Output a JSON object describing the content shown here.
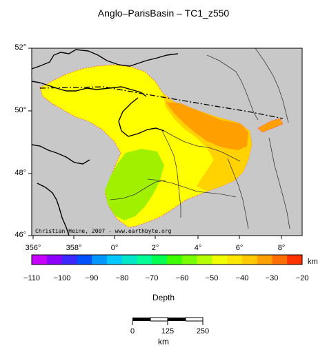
{
  "title": "Anglo–ParisBasin – TC1_z550",
  "credit": "Christian Heine, 2007 - www.earthbyte.org",
  "map": {
    "lat_labels": [
      "52°",
      "50°",
      "48°",
      "46°"
    ],
    "lon_labels": [
      "356°",
      "358°",
      "0°",
      "2°",
      "4°",
      "6°",
      "8°"
    ],
    "colors": {
      "land": "#c8c8c8",
      "shallow": "#ffff00",
      "mid": "#ffd200",
      "deep": "#ffa000",
      "low": "#a0f000",
      "boundary": "#ff6060"
    }
  },
  "colorbar": {
    "unit": "km",
    "title": "Depth",
    "ticks": [
      "−110",
      "−100",
      "−90",
      "−80",
      "−70",
      "−60",
      "−50",
      "−40",
      "−30",
      "−20"
    ],
    "colors": [
      "#c800ff",
      "#8c00ff",
      "#3c28ff",
      "#0050ff",
      "#0096ff",
      "#00c8ff",
      "#00e6c8",
      "#00ff96",
      "#00ff50",
      "#3cff00",
      "#78ff00",
      "#b4ff00",
      "#f0ff00",
      "#ffe600",
      "#ffc800",
      "#ffa000",
      "#ff6e00",
      "#ff3200"
    ]
  },
  "scalebar": {
    "ticks": [
      "0",
      "125",
      "250"
    ],
    "unit": "km"
  }
}
